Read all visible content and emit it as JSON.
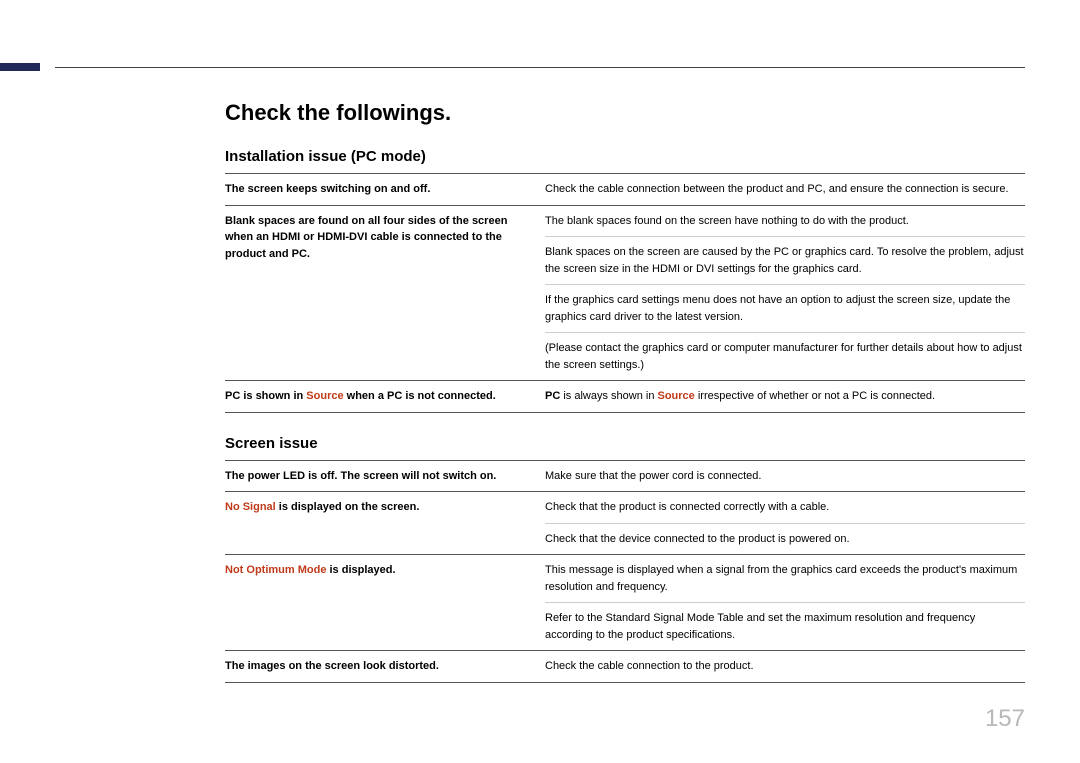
{
  "page_number": "157",
  "accent_color": "#1f2a5a",
  "highlight_color": "#c13a1a",
  "main_heading": "Check the followings.",
  "section1": {
    "heading": "Installation issue (PC mode)",
    "rows": [
      {
        "left": "The screen keeps switching on and off.",
        "right": "Check the cable connection between the product and PC, and ensure the connection is secure."
      },
      {
        "left": "Blank spaces are found on all four sides of the screen when an HDMI or HDMI-DVI cable is connected to the product and PC.",
        "right": "The blank spaces found on the screen have nothing to do with the product."
      },
      {
        "right": "Blank spaces on the screen are caused by the PC or graphics card. To resolve the problem, adjust the screen size in the HDMI or DVI settings for the graphics card."
      },
      {
        "right": "If the graphics card settings menu does not have an option to adjust the screen size, update the graphics card driver to the latest version."
      },
      {
        "right": "(Please contact the graphics card or computer manufacturer for further details about how to adjust the screen settings.)"
      },
      {
        "left_pre": "PC is shown in ",
        "left_hl": "Source",
        "left_post": " when a PC is not connected.",
        "right_pre": "PC",
        "right_mid1": " is always shown in ",
        "right_hl": "Source",
        "right_post": " irrespective of whether or not a PC is connected."
      }
    ]
  },
  "section2": {
    "heading": "Screen issue",
    "rows": [
      {
        "left": "The power LED is off. The screen will not switch on.",
        "right": "Make sure that the power cord is connected."
      },
      {
        "left_hl": "No Signal",
        "left_post": " is displayed on the screen.",
        "right": "Check that the product is connected correctly with a cable."
      },
      {
        "right": "Check that the device connected to the product is powered on."
      },
      {
        "left_hl": "Not Optimum Mode",
        "left_post": " is displayed.",
        "right": "This message is displayed when a signal from the graphics card exceeds the product's maximum resolution and frequency."
      },
      {
        "right": "Refer to the Standard Signal Mode Table and set the maximum resolution and frequency according to the product specifications."
      },
      {
        "left": "The images on the screen look distorted.",
        "right": "Check the cable connection to the product."
      }
    ]
  }
}
